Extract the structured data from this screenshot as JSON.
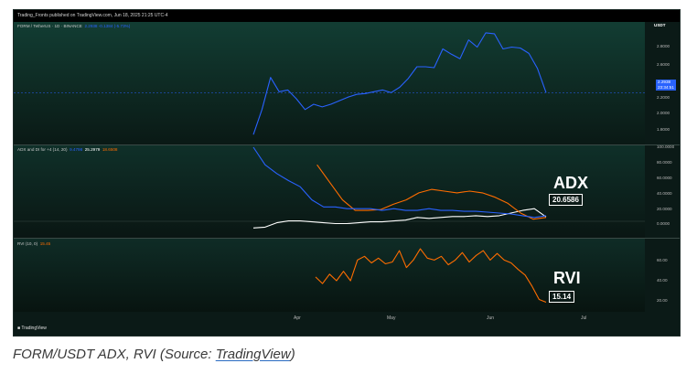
{
  "topbar": {
    "text": "Trading_Fronts published on TradingView.com, Jun 18, 2025 21:25 UTC-4"
  },
  "panes": {
    "price": {
      "label_prefix": "FORM / TetherUS · 1D · BINANCE",
      "label_values": "2.2938  -0.1384 (-5.73%)",
      "price_tag": "2.2938",
      "price_tag_sub": "23:34:51",
      "currency": "USDT",
      "y_ticks": [
        "2.8000",
        "2.6000",
        "2.4000",
        "2.2000",
        "2.0000",
        "1.8000"
      ]
    },
    "adx": {
      "label_prefix": "ADX and DI for +4 (14, 20)",
      "label_v1": "9.4798",
      "label_v2": "25.2979",
      "label_v3": "18.6508",
      "big_label": "ADX",
      "value_box": "20.6586",
      "y_ticks": [
        "100.0000",
        "80.0000",
        "60.0000",
        "40.0000",
        "20.0000",
        "0.0000"
      ]
    },
    "rvi": {
      "label_prefix": "RVI (10, 0)",
      "label_value": "15.45",
      "big_label": "RVI",
      "value_box": "15.14",
      "y_ticks": [
        "60.00",
        "40.00",
        "20.00"
      ]
    }
  },
  "x_axis": [
    "Apr",
    "May",
    "Jun",
    "Jul"
  ],
  "logo": "TradingView",
  "caption": {
    "prefix": "FORM/USDT ADX, RVI (Source: ",
    "link": "TradingView",
    "suffix": ")"
  },
  "colors": {
    "price": "#2962ff",
    "adx": "#ffffff",
    "di_minus": "#ff6d00",
    "di_plus": "#2962ff",
    "rvi": "#ff6d00",
    "background": "#0b1a17"
  },
  "chart_data": [
    {
      "type": "line",
      "title": "FORM / TetherUS · 1D · BINANCE",
      "series": [
        {
          "name": "FORM/USDT",
          "values": [
            1.82,
            2.1,
            2.46,
            2.3,
            2.32,
            2.22,
            2.1,
            2.16,
            2.13,
            2.16,
            2.2,
            2.24,
            2.27,
            2.28,
            2.3,
            2.32,
            2.29,
            2.35,
            2.45,
            2.58,
            2.58,
            2.57,
            2.78,
            2.72,
            2.67,
            2.88,
            2.8,
            2.96,
            2.95,
            2.78,
            2.8,
            2.79,
            2.73,
            2.56,
            2.29
          ]
        }
      ],
      "ylim": [
        1.75,
        3.0
      ]
    },
    {
      "type": "line",
      "title": "ADX and DI for +4 (14, 20)",
      "series": [
        {
          "values": [
            8,
            9,
            14,
            16,
            16,
            15,
            14,
            13,
            13,
            14,
            15,
            15,
            16,
            17,
            20,
            19,
            20,
            21,
            21,
            22,
            21,
            22,
            25,
            28,
            30,
            20.66
          ]
        },
        {
          "values": [
            null,
            null,
            null,
            null,
            null,
            80,
            60,
            40,
            28,
            28,
            29,
            35,
            40,
            48,
            52,
            50,
            48,
            50,
            48,
            43,
            36,
            25,
            18,
            20
          ]
        },
        {
          "values": [
            100,
            80,
            70,
            62,
            55,
            40,
            32,
            32,
            30,
            30,
            30,
            28,
            30,
            28,
            28,
            30,
            28,
            28,
            27,
            27,
            26,
            25,
            24,
            22,
            20,
            22
          ]
        }
      ],
      "ylim": [
        0,
        100
      ]
    },
    {
      "type": "line",
      "title": "RVI (10, 0)",
      "series": [
        {
          "values": [
            42,
            35,
            45,
            38,
            48,
            38,
            60,
            64,
            57,
            62,
            56,
            58,
            70,
            52,
            60,
            72,
            62,
            60,
            64,
            55,
            60,
            68,
            58,
            65,
            70,
            60,
            67,
            60,
            57,
            50,
            44,
            32,
            18,
            15.14
          ]
        }
      ],
      "ylim": [
        0,
        75
      ]
    }
  ]
}
